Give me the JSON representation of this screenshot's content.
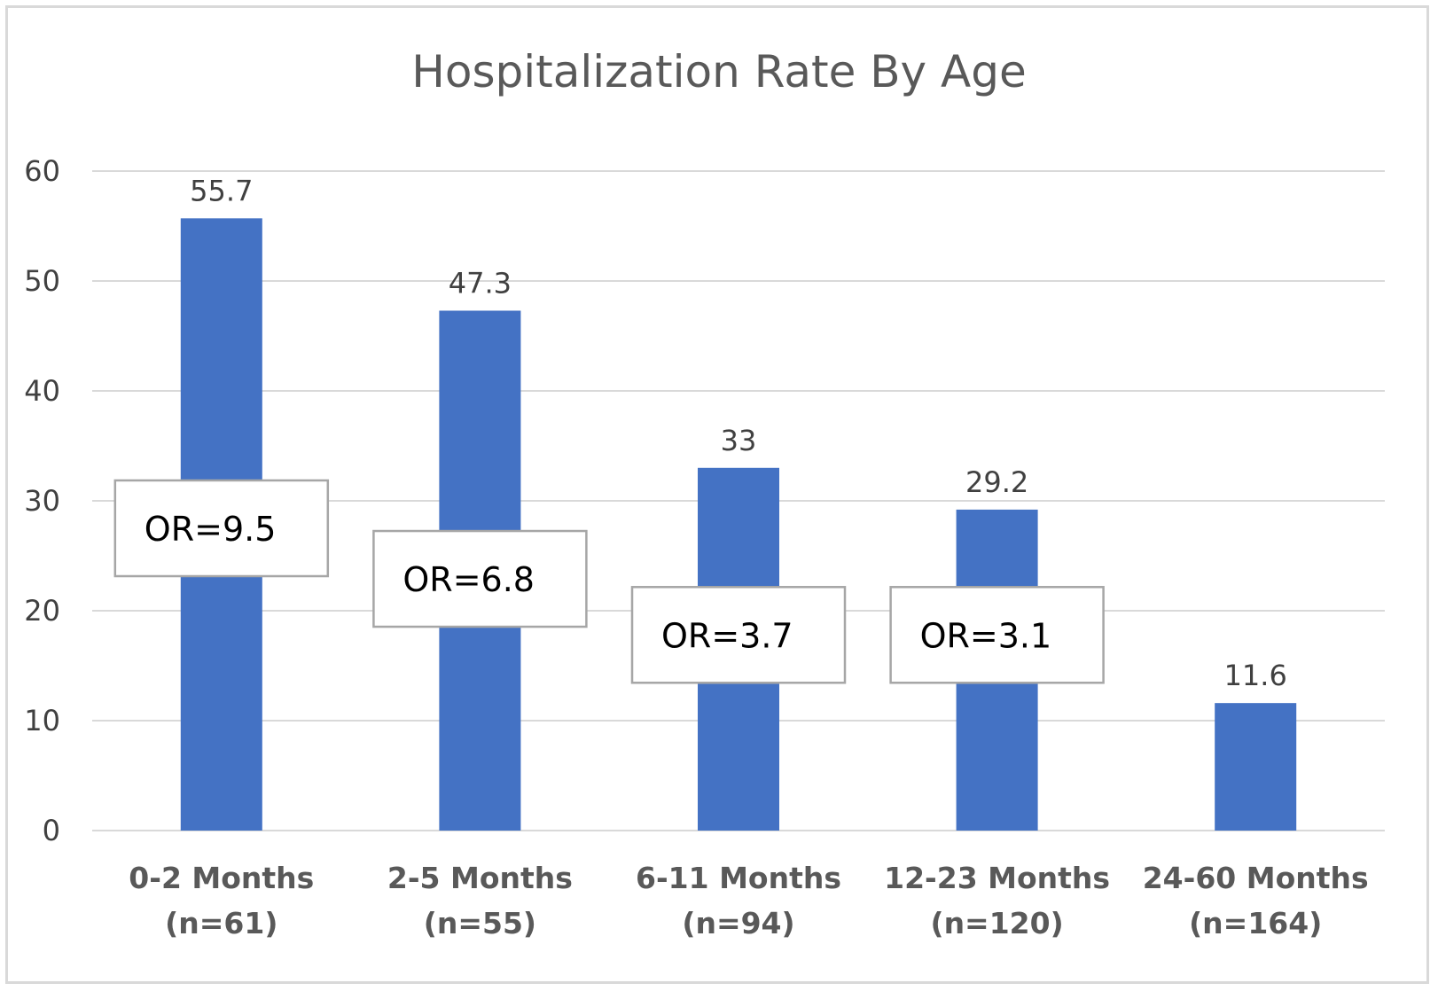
{
  "chart_data": {
    "type": "bar",
    "title": "Hospitalization Rate By Age",
    "categories": [
      [
        "0-2 Months",
        "(n=61)"
      ],
      [
        "2-5 Months",
        "(n=55)"
      ],
      [
        "6-11 Months",
        "(n=94)"
      ],
      [
        "12-23 Months",
        "(n=120)"
      ],
      [
        "24-60 Months",
        "(n=164)"
      ]
    ],
    "values": [
      55.7,
      47.3,
      33,
      29.2,
      11.6
    ],
    "data_labels": [
      "55.7",
      "47.3",
      "33",
      "29.2",
      "11.6"
    ],
    "annotations": [
      {
        "category_index": 0,
        "text": "OR=9.5",
        "y": 27.5
      },
      {
        "category_index": 1,
        "text": "OR=6.8",
        "y": 22.9
      },
      {
        "category_index": 2,
        "text": "OR=3.7",
        "y": 17.8
      },
      {
        "category_index": 3,
        "text": "OR=3.1",
        "y": 17.8
      }
    ],
    "ylim": [
      0,
      60
    ],
    "yticks": [
      0,
      10,
      20,
      30,
      40,
      50,
      60
    ],
    "xlabel": "",
    "ylabel": "",
    "grid": true,
    "legend": "none",
    "bar_color": "#4472c4",
    "grid_color": "#d9d9d9"
  }
}
